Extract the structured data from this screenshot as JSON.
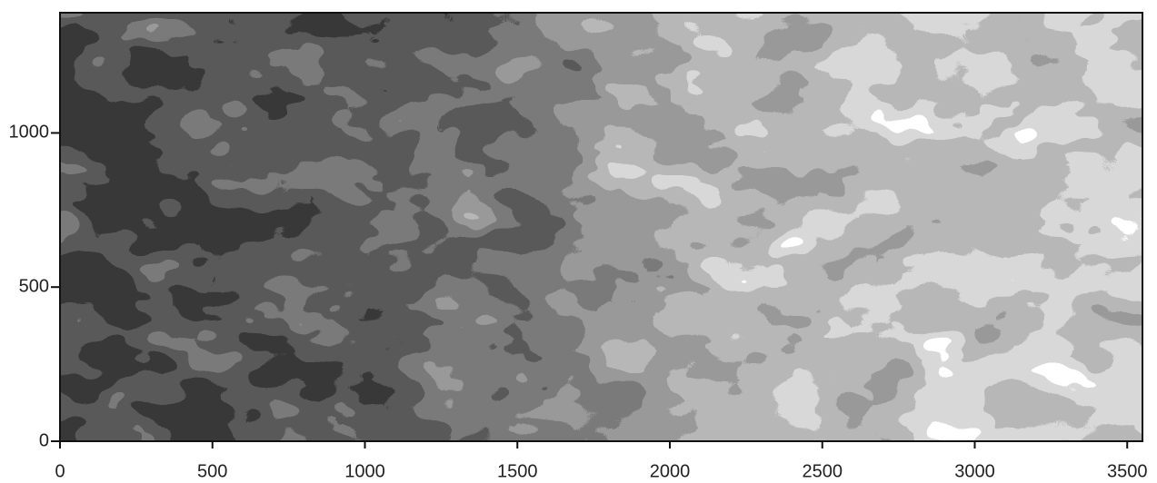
{
  "chart_data": {
    "type": "contour",
    "xlim": [
      0,
      3550
    ],
    "ylim": [
      0,
      1390
    ],
    "xticks": [
      0,
      500,
      1000,
      1500,
      2000,
      2500,
      3000,
      3500
    ],
    "yticks": [
      0,
      500,
      1000
    ]
  }
}
